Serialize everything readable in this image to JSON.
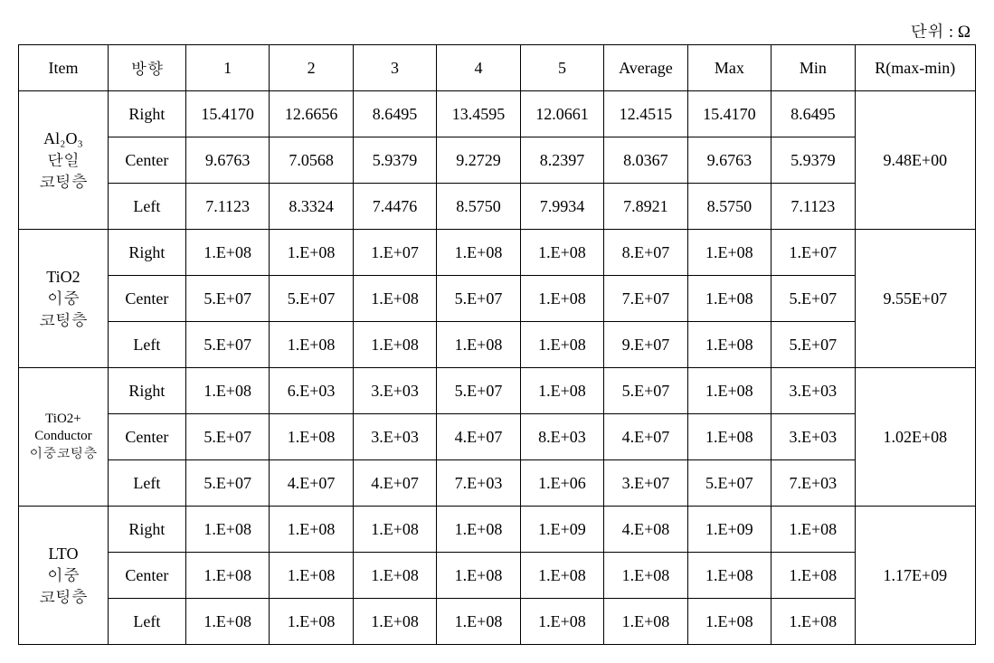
{
  "unit_label": "단위 : Ω",
  "headers": {
    "item": "Item",
    "direction": "방향",
    "c1": "1",
    "c2": "2",
    "c3": "3",
    "c4": "4",
    "c5": "5",
    "avg": "Average",
    "max": "Max",
    "min": "Min",
    "r": "R(max-min)"
  },
  "groups": [
    {
      "label_lines": [
        "Al₂O₃",
        "단일",
        "코팅층"
      ],
      "label_small": false,
      "r": "9.48E+00",
      "rows": [
        {
          "dir": "Right",
          "v": [
            "15.4170",
            "12.6656",
            "8.6495",
            "13.4595",
            "12.0661",
            "12.4515",
            "15.4170",
            "8.6495"
          ]
        },
        {
          "dir": "Center",
          "v": [
            "9.6763",
            "7.0568",
            "5.9379",
            "9.2729",
            "8.2397",
            "8.0367",
            "9.6763",
            "5.9379"
          ]
        },
        {
          "dir": "Left",
          "v": [
            "7.1123",
            "8.3324",
            "7.4476",
            "8.5750",
            "7.9934",
            "7.8921",
            "8.5750",
            "7.1123"
          ]
        }
      ]
    },
    {
      "label_lines": [
        "TiO2",
        "이중",
        "코팅층"
      ],
      "label_small": false,
      "r": "9.55E+07",
      "rows": [
        {
          "dir": "Right",
          "v": [
            "1.E+08",
            "1.E+08",
            "1.E+07",
            "1.E+08",
            "1.E+08",
            "8.E+07",
            "1.E+08",
            "1.E+07"
          ]
        },
        {
          "dir": "Center",
          "v": [
            "5.E+07",
            "5.E+07",
            "1.E+08",
            "5.E+07",
            "1.E+08",
            "7.E+07",
            "1.E+08",
            "5.E+07"
          ]
        },
        {
          "dir": "Left",
          "v": [
            "5.E+07",
            "1.E+08",
            "1.E+08",
            "1.E+08",
            "1.E+08",
            "9.E+07",
            "1.E+08",
            "5.E+07"
          ]
        }
      ]
    },
    {
      "label_lines": [
        "TiO2+",
        "Conductor",
        "이중코팅층"
      ],
      "label_small": true,
      "r": "1.02E+08",
      "rows": [
        {
          "dir": "Right",
          "v": [
            "1.E+08",
            "6.E+03",
            "3.E+03",
            "5.E+07",
            "1.E+08",
            "5.E+07",
            "1.E+08",
            "3.E+03"
          ]
        },
        {
          "dir": "Center",
          "v": [
            "5.E+07",
            "1.E+08",
            "3.E+03",
            "4.E+07",
            "8.E+03",
            "4.E+07",
            "1.E+08",
            "3.E+03"
          ]
        },
        {
          "dir": "Left",
          "v": [
            "5.E+07",
            "4.E+07",
            "4.E+07",
            "7.E+03",
            "1.E+06",
            "3.E+07",
            "5.E+07",
            "7.E+03"
          ]
        }
      ]
    },
    {
      "label_lines": [
        "LTO",
        "이중",
        "코팅층"
      ],
      "label_small": false,
      "r": "1.17E+09",
      "rows": [
        {
          "dir": "Right",
          "v": [
            "1.E+08",
            "1.E+08",
            "1.E+08",
            "1.E+08",
            "1.E+09",
            "4.E+08",
            "1.E+09",
            "1.E+08"
          ]
        },
        {
          "dir": "Center",
          "v": [
            "1.E+08",
            "1.E+08",
            "1.E+08",
            "1.E+08",
            "1.E+08",
            "1.E+08",
            "1.E+08",
            "1.E+08"
          ]
        },
        {
          "dir": "Left",
          "v": [
            "1.E+08",
            "1.E+08",
            "1.E+08",
            "1.E+08",
            "1.E+08",
            "1.E+08",
            "1.E+08",
            "1.E+08"
          ]
        }
      ]
    }
  ]
}
